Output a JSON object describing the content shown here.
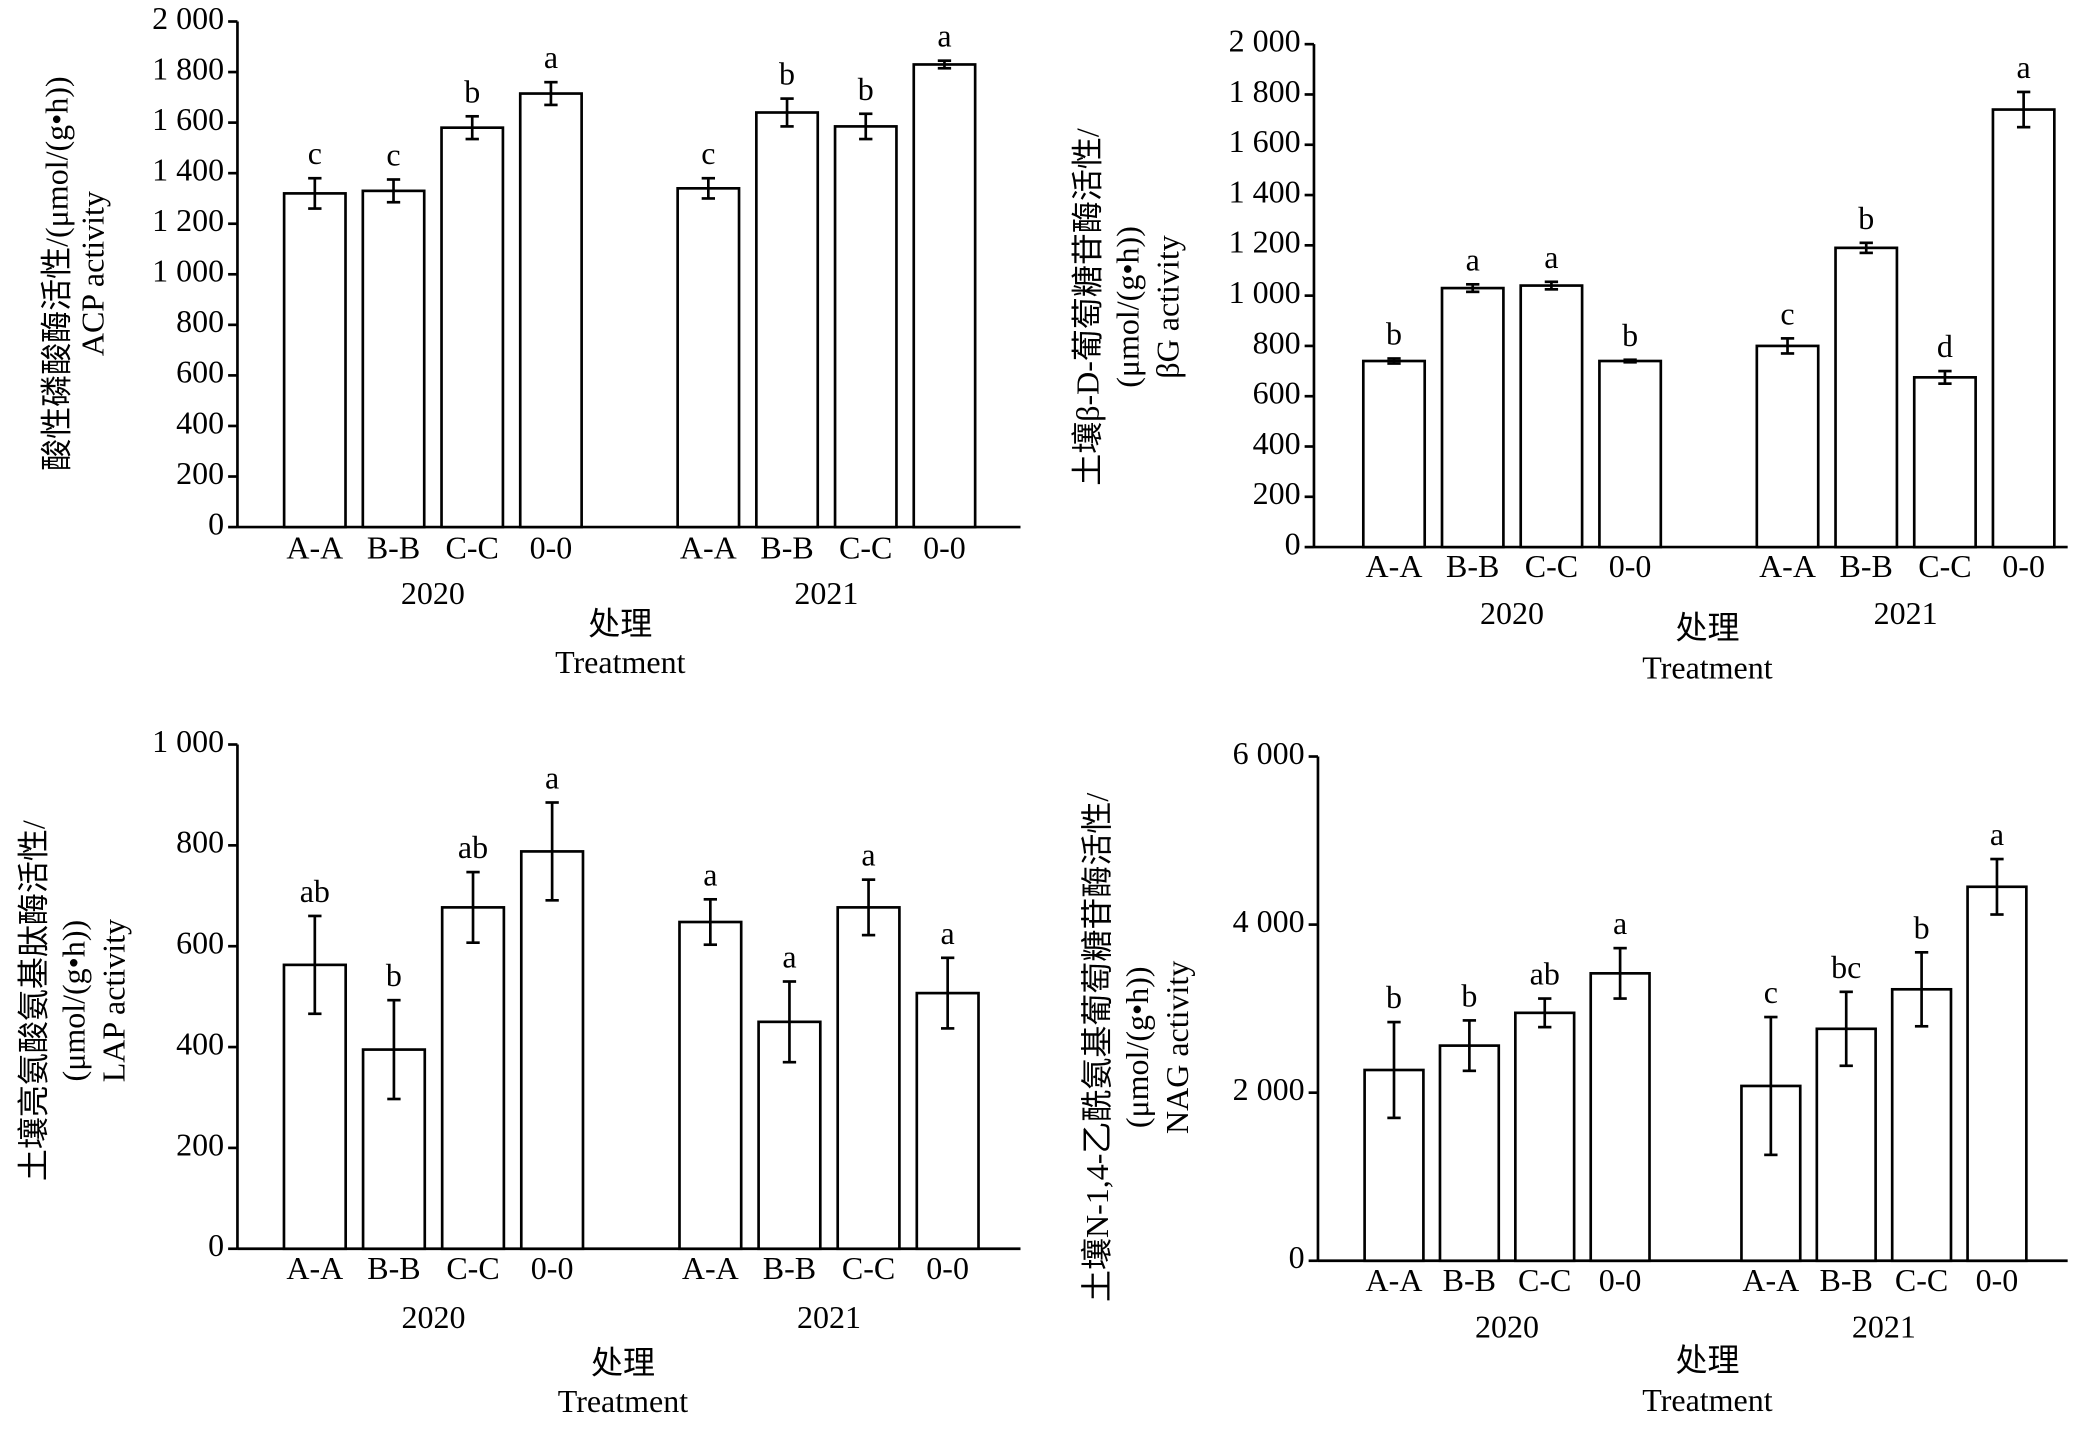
{
  "chart_data": [
    {
      "type": "bar",
      "ylabel": [
        "酸性磷酸酶活性/(μmol/(g•h))",
        "ACP activity"
      ],
      "xlabel": [
        "处理",
        "Treatment"
      ],
      "groups": [
        "2020",
        "2021"
      ],
      "categories": [
        "A-A",
        "B-B",
        "C-C",
        "0-0",
        "A-A",
        "B-B",
        "C-C",
        "0-0"
      ],
      "values": [
        1320,
        1330,
        1580,
        1715,
        1340,
        1640,
        1585,
        1830
      ],
      "errors": [
        60,
        45,
        45,
        45,
        40,
        55,
        50,
        15
      ],
      "letters": [
        "c",
        "c",
        "b",
        "a",
        "c",
        "b",
        "b",
        "a"
      ],
      "color": "#ffffff",
      "ylim": [
        0,
        2000
      ],
      "yticks": [
        0,
        200,
        400,
        600,
        800,
        {
          "value": 1000,
          "label": "1 000"
        },
        {
          "value": 1200,
          "label": "1 200"
        },
        {
          "value": 1400,
          "label": "1 400"
        },
        {
          "value": 1600,
          "label": "1 600"
        },
        {
          "value": 1800,
          "label": "1 800"
        },
        {
          "value": 2000,
          "label": "2 000"
        }
      ]
    },
    {
      "type": "bar",
      "ylabel": [
        "土壤β-D-葡萄糖苷酶活性/",
        "(μmol/(g•h))",
        "βG activity"
      ],
      "xlabel": [
        "处理",
        "Treatment"
      ],
      "groups": [
        "2020",
        "2021"
      ],
      "categories": [
        "A-A",
        "B-B",
        "C-C",
        "0-0",
        "A-A",
        "B-B",
        "C-C",
        "0-0"
      ],
      "values": [
        740,
        1030,
        1040,
        740,
        800,
        1190,
        675,
        1740
      ],
      "errors": [
        10,
        15,
        15,
        5,
        30,
        20,
        25,
        70
      ],
      "letters": [
        "b",
        "a",
        "a",
        "b",
        "c",
        "b",
        "d",
        "a"
      ],
      "color": "#ffffff",
      "ylim": [
        0,
        2000
      ],
      "yticks": [
        0,
        200,
        400,
        600,
        800,
        {
          "value": 1000,
          "label": "1 000"
        },
        {
          "value": 1200,
          "label": "1 200"
        },
        {
          "value": 1400,
          "label": "1 400"
        },
        {
          "value": 1600,
          "label": "1 600"
        },
        {
          "value": 1800,
          "label": "1 800"
        },
        {
          "value": 2000,
          "label": "2 000"
        }
      ]
    },
    {
      "type": "bar",
      "ylabel": [
        "土壤亮氨酸氨基肽酶活性/",
        "(μmol/(g•h))",
        "LAP activity"
      ],
      "xlabel": [
        "处理",
        "Treatment"
      ],
      "groups": [
        "2020",
        "2021"
      ],
      "categories": [
        "A-A",
        "B-B",
        "C-C",
        "0-0",
        "A-A",
        "B-B",
        "C-C",
        "0-0"
      ],
      "values": [
        563,
        395,
        677,
        788,
        648,
        450,
        677,
        507
      ],
      "errors": [
        97,
        98,
        70,
        97,
        45,
        80,
        55,
        70
      ],
      "letters": [
        "ab",
        "b",
        "ab",
        "a",
        "a",
        "a",
        "a",
        "a"
      ],
      "color": "#ffffff",
      "ylim": [
        0,
        1000
      ],
      "yticks": [
        0,
        200,
        400,
        600,
        800,
        {
          "value": 1000,
          "label": "1 000"
        }
      ]
    },
    {
      "type": "bar",
      "ylabel": [
        "土壤N-1,4-乙酰氨基葡萄糖苷酶活性/",
        "(μmol/(g•h))",
        "NAG activity"
      ],
      "xlabel": [
        "处理",
        "Treatment"
      ],
      "groups": [
        "2020",
        "2021"
      ],
      "categories": [
        "A-A",
        "B-B",
        "C-C",
        "0-0",
        "A-A",
        "B-B",
        "C-C",
        "0-0"
      ],
      "values": [
        2270,
        2560,
        2950,
        3420,
        2080,
        2760,
        3230,
        4450
      ],
      "errors": [
        570,
        300,
        170,
        300,
        820,
        440,
        440,
        330
      ],
      "letters": [
        "b",
        "b",
        "ab",
        "a",
        "c",
        "bc",
        "b",
        "a"
      ],
      "color": "#ffffff",
      "ylim": [
        0,
        6000
      ],
      "yticks": [
        0,
        {
          "value": 2000,
          "label": "2 000"
        },
        {
          "value": 4000,
          "label": "4 000"
        },
        {
          "value": 6000,
          "label": "6 000"
        }
      ]
    }
  ]
}
